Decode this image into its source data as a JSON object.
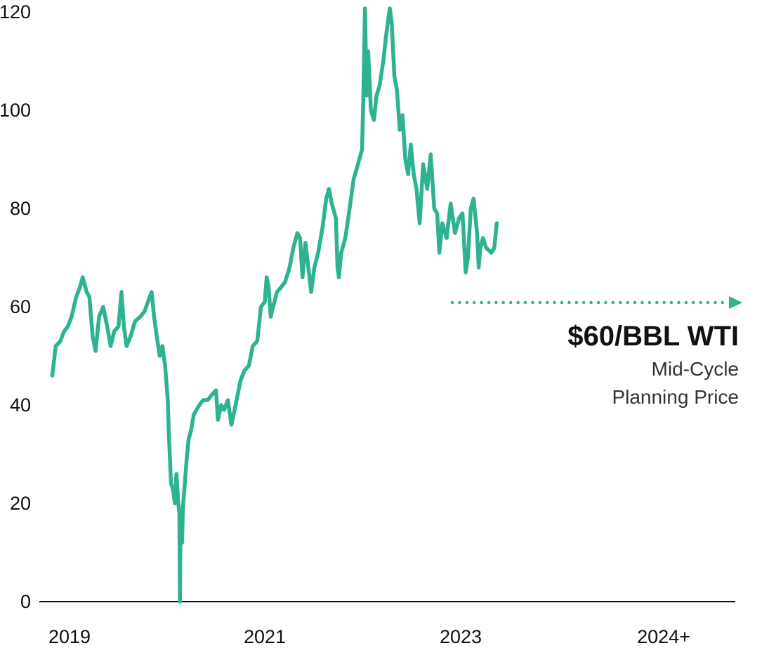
{
  "chart_data": {
    "type": "line",
    "title": "",
    "xlabel": "",
    "ylabel": "",
    "ylim": [
      0,
      120
    ],
    "grid": false,
    "y_ticks": [
      0,
      20,
      40,
      60,
      80,
      100,
      120
    ],
    "y_tick_labels": [
      "0",
      "20",
      "40",
      "60",
      "80",
      "100",
      "120"
    ],
    "x_ticks": [
      {
        "label": "2019",
        "date": "2019-01-01"
      },
      {
        "label": "2021",
        "date": "2021-01-01"
      },
      {
        "label": "2023",
        "date": "2023-01-01"
      },
      {
        "label": "2024+",
        "date": "2024-01-01"
      }
    ],
    "colors": {
      "series": "#2db391",
      "axis": "#111111",
      "text": "#111111"
    },
    "series": [
      {
        "points": [
          [
            "2019-01-02",
            46
          ],
          [
            "2019-01-15",
            52
          ],
          [
            "2019-02-01",
            53
          ],
          [
            "2019-02-15",
            55
          ],
          [
            "2019-03-01",
            56
          ],
          [
            "2019-03-15",
            58
          ],
          [
            "2019-04-01",
            62
          ],
          [
            "2019-04-15",
            64
          ],
          [
            "2019-04-25",
            66
          ],
          [
            "2019-05-10",
            63
          ],
          [
            "2019-05-20",
            62
          ],
          [
            "2019-06-01",
            54
          ],
          [
            "2019-06-12",
            51
          ],
          [
            "2019-06-25",
            58
          ],
          [
            "2019-07-10",
            60
          ],
          [
            "2019-07-25",
            56
          ],
          [
            "2019-08-07",
            52
          ],
          [
            "2019-08-20",
            55
          ],
          [
            "2019-09-05",
            56
          ],
          [
            "2019-09-16",
            63
          ],
          [
            "2019-09-25",
            56
          ],
          [
            "2019-10-05",
            52
          ],
          [
            "2019-10-20",
            54
          ],
          [
            "2019-11-05",
            57
          ],
          [
            "2019-11-25",
            58
          ],
          [
            "2019-12-10",
            59
          ],
          [
            "2019-12-30",
            62
          ],
          [
            "2020-01-06",
            63
          ],
          [
            "2020-01-15",
            58
          ],
          [
            "2020-01-25",
            54
          ],
          [
            "2020-02-05",
            50
          ],
          [
            "2020-02-15",
            52
          ],
          [
            "2020-02-25",
            48
          ],
          [
            "2020-03-06",
            41
          ],
          [
            "2020-03-10",
            34
          ],
          [
            "2020-03-18",
            24
          ],
          [
            "2020-03-25",
            23
          ],
          [
            "2020-04-01",
            20
          ],
          [
            "2020-04-07",
            26
          ],
          [
            "2020-04-14",
            20
          ],
          [
            "2020-04-18",
            18
          ],
          [
            "2020-04-20",
            0
          ],
          [
            "2020-04-22",
            14
          ],
          [
            "2020-04-28",
            12
          ],
          [
            "2020-05-01",
            19
          ],
          [
            "2020-05-08",
            24
          ],
          [
            "2020-05-15",
            29
          ],
          [
            "2020-05-22",
            33
          ],
          [
            "2020-06-01",
            35
          ],
          [
            "2020-06-10",
            38
          ],
          [
            "2020-06-20",
            39
          ],
          [
            "2020-07-01",
            40
          ],
          [
            "2020-07-15",
            41
          ],
          [
            "2020-08-01",
            41
          ],
          [
            "2020-08-15",
            42
          ],
          [
            "2020-09-01",
            43
          ],
          [
            "2020-09-08",
            37
          ],
          [
            "2020-09-20",
            40
          ],
          [
            "2020-10-01",
            39
          ],
          [
            "2020-10-15",
            41
          ],
          [
            "2020-10-28",
            36
          ],
          [
            "2020-11-05",
            38
          ],
          [
            "2020-11-20",
            42
          ],
          [
            "2020-12-01",
            45
          ],
          [
            "2020-12-15",
            47
          ],
          [
            "2021-01-01",
            48
          ],
          [
            "2021-01-15",
            52
          ],
          [
            "2021-02-01",
            53
          ],
          [
            "2021-02-15",
            60
          ],
          [
            "2021-03-01",
            61
          ],
          [
            "2021-03-08",
            66
          ],
          [
            "2021-03-15",
            64
          ],
          [
            "2021-03-23",
            58
          ],
          [
            "2021-04-01",
            60
          ],
          [
            "2021-04-15",
            63
          ],
          [
            "2021-05-01",
            64
          ],
          [
            "2021-05-15",
            65
          ],
          [
            "2021-06-01",
            68
          ],
          [
            "2021-06-15",
            72
          ],
          [
            "2021-06-30",
            75
          ],
          [
            "2021-07-10",
            74
          ],
          [
            "2021-07-19",
            66
          ],
          [
            "2021-07-30",
            73
          ],
          [
            "2021-08-10",
            68
          ],
          [
            "2021-08-20",
            63
          ],
          [
            "2021-09-01",
            68
          ],
          [
            "2021-09-15",
            71
          ],
          [
            "2021-10-01",
            76
          ],
          [
            "2021-10-15",
            82
          ],
          [
            "2021-10-25",
            84
          ],
          [
            "2021-11-05",
            81
          ],
          [
            "2021-11-20",
            78
          ],
          [
            "2021-11-26",
            68
          ],
          [
            "2021-12-01",
            66
          ],
          [
            "2021-12-10",
            71
          ],
          [
            "2021-12-25",
            74
          ],
          [
            "2022-01-10",
            80
          ],
          [
            "2022-01-25",
            86
          ],
          [
            "2022-02-10",
            89
          ],
          [
            "2022-02-25",
            92
          ],
          [
            "2022-03-02",
            103
          ],
          [
            "2022-03-08",
            123
          ],
          [
            "2022-03-14",
            103
          ],
          [
            "2022-03-20",
            112
          ],
          [
            "2022-03-30",
            100
          ],
          [
            "2022-04-10",
            98
          ],
          [
            "2022-04-20",
            103
          ],
          [
            "2022-05-01",
            105
          ],
          [
            "2022-05-15",
            110
          ],
          [
            "2022-05-25",
            115
          ],
          [
            "2022-06-08",
            122
          ],
          [
            "2022-06-15",
            118
          ],
          [
            "2022-06-25",
            107
          ],
          [
            "2022-07-05",
            104
          ],
          [
            "2022-07-15",
            96
          ],
          [
            "2022-07-25",
            99
          ],
          [
            "2022-08-05",
            90
          ],
          [
            "2022-08-15",
            87
          ],
          [
            "2022-08-25",
            93
          ],
          [
            "2022-09-05",
            87
          ],
          [
            "2022-09-15",
            84
          ],
          [
            "2022-09-27",
            77
          ],
          [
            "2022-10-10",
            89
          ],
          [
            "2022-10-25",
            84
          ],
          [
            "2022-11-07",
            91
          ],
          [
            "2022-11-20",
            80
          ],
          [
            "2022-12-01",
            79
          ],
          [
            "2022-12-09",
            71
          ],
          [
            "2022-12-20",
            77
          ],
          [
            "2023-01-05",
            74
          ],
          [
            "2023-01-20",
            81
          ],
          [
            "2023-02-05",
            75
          ],
          [
            "2023-02-20",
            78
          ],
          [
            "2023-03-05",
            79
          ],
          [
            "2023-03-17",
            67
          ],
          [
            "2023-03-25",
            70
          ],
          [
            "2023-04-05",
            80
          ],
          [
            "2023-04-15",
            82
          ],
          [
            "2023-04-28",
            75
          ],
          [
            "2023-05-04",
            68
          ],
          [
            "2023-05-10",
            72
          ],
          [
            "2023-05-20",
            74
          ],
          [
            "2023-06-01",
            72
          ],
          [
            "2023-06-20",
            71
          ],
          [
            "2023-07-01",
            72
          ],
          [
            "2023-07-10",
            77
          ]
        ]
      }
    ],
    "annotation": {
      "headline": "$60/BBL WTI",
      "subtitle_line1": "Mid-Cycle",
      "subtitle_line2": "Planning Price",
      "reference_value": 60,
      "style": "dotted-arrow"
    }
  }
}
